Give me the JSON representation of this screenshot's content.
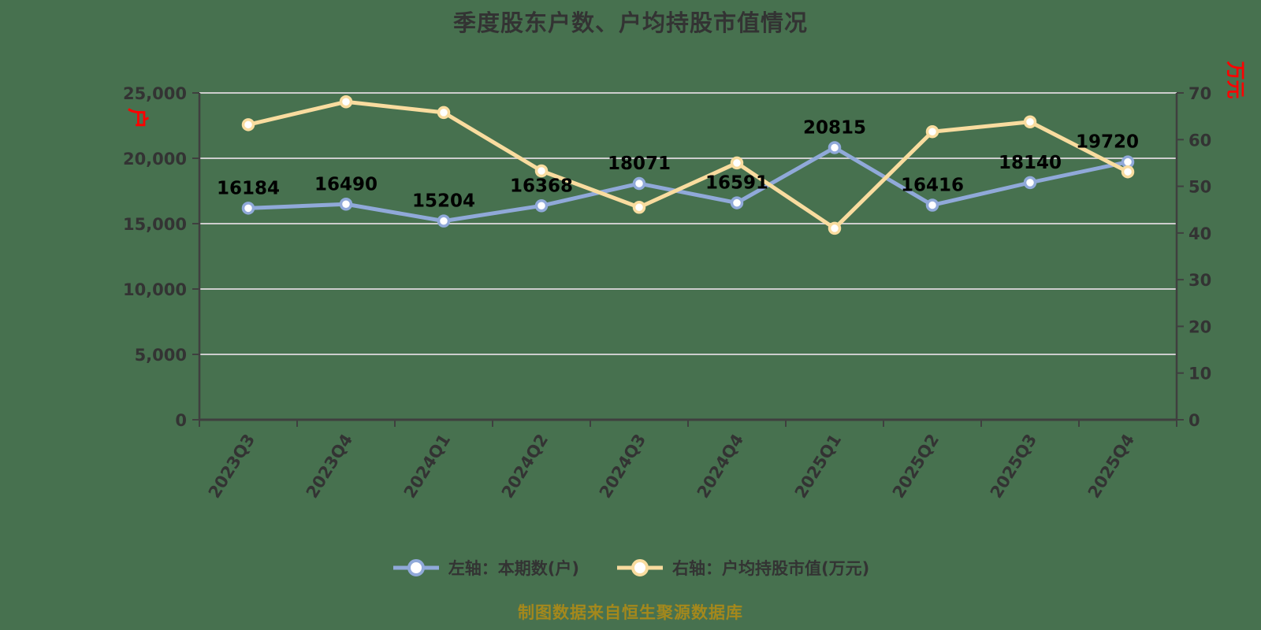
{
  "title": "季度股东户数、户均持股市值情况",
  "footer": "制图数据来自恒生聚源数据库",
  "colors": {
    "background": "#47714F",
    "title": "#333333",
    "axis": "#3F3F3F",
    "grid": "#CDCDCD",
    "tick_label": "#333333",
    "data_label": "#000000",
    "series_left": "#90A9D9",
    "series_right": "#F9DC9F",
    "marker_fill": "#FFFFFF",
    "unit_label": "#FF0000",
    "footer_text": "#A4881C"
  },
  "chart_data": {
    "type": "line",
    "title": "季度股东户数、户均持股市值情况",
    "categories": [
      "2023Q3",
      "2023Q4",
      "2024Q1",
      "2024Q2",
      "2024Q3",
      "2024Q4",
      "2025Q1",
      "2025Q2",
      "2025Q3",
      "2025Q4"
    ],
    "series": [
      {
        "name": "左轴：本期数(户)",
        "axis": "left",
        "color": "#90A9D9",
        "values": [
          16184,
          16490,
          15204,
          16368,
          18071,
          16591,
          20815,
          16416,
          18140,
          19720
        ],
        "data_labels": [
          "16184",
          "16490",
          "15204",
          "16368",
          "18071",
          "16591",
          "20815",
          "16416",
          "18140",
          "19720"
        ],
        "show_labels": true
      },
      {
        "name": "右轴：户均持股市值(万元)",
        "axis": "right",
        "color": "#F9DC9F",
        "values": [
          63.2,
          68.1,
          65.8,
          53.3,
          45.5,
          55,
          41,
          61.7,
          63.8,
          53.1
        ],
        "show_labels": false
      }
    ],
    "left_axis": {
      "unit": "户",
      "min": 0,
      "max": 25000,
      "step": 5000,
      "tick_labels": [
        "0",
        "5,000",
        "10,000",
        "15,000",
        "20,000",
        "25,000"
      ]
    },
    "right_axis": {
      "unit": "万元",
      "min": 0,
      "max": 70,
      "step": 10,
      "tick_labels": [
        "0",
        "10",
        "20",
        "30",
        "40",
        "50",
        "60",
        "70"
      ]
    },
    "grid": true,
    "legend_position": "bottom"
  }
}
